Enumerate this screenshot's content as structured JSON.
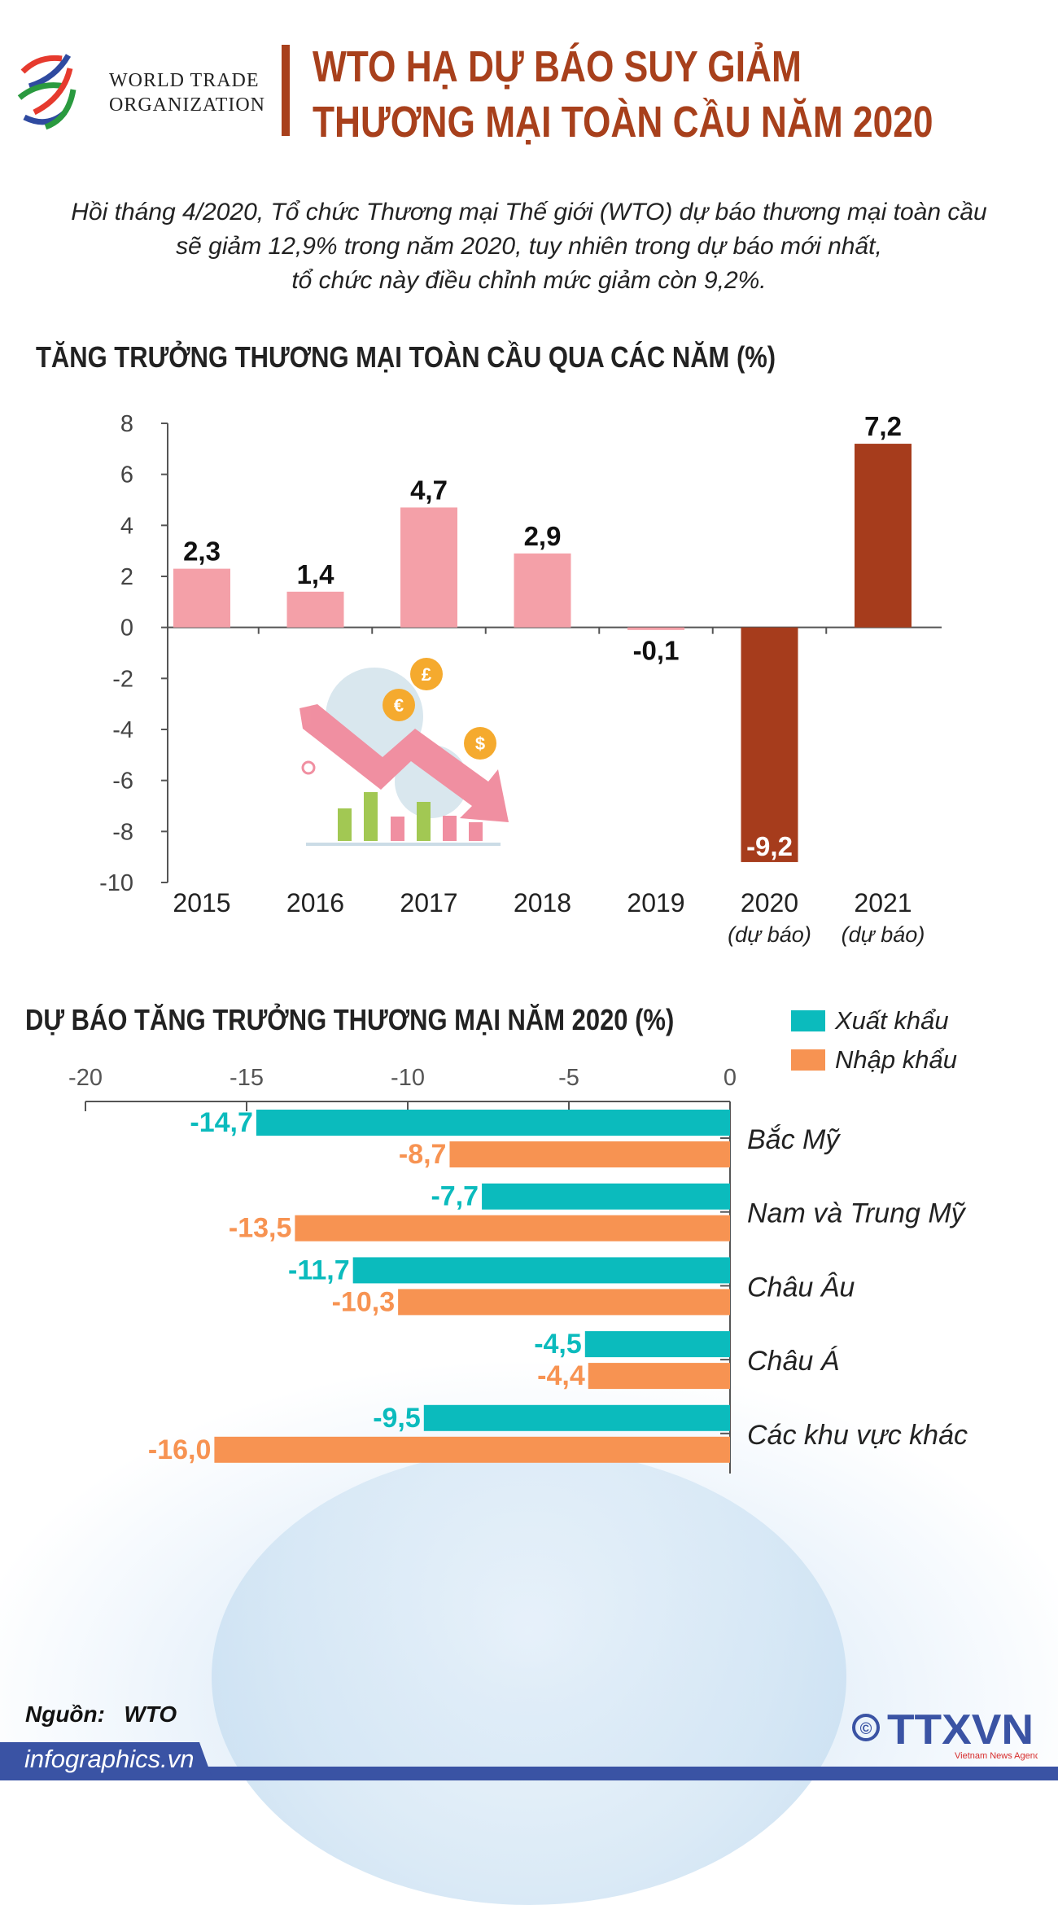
{
  "header": {
    "logo_text": [
      "WORLD TRADE",
      "ORGANIZATION"
    ],
    "title_lines": [
      "WTO HẠ DỰ BÁO SUY GIẢM",
      "THƯƠNG MẠI TOÀN CẦU NĂM 2020"
    ]
  },
  "intro": [
    "Hồi tháng 4/2020, Tổ chức Thương mại Thế giới (WTO) dự báo thương mại toàn cầu",
    "sẽ giảm 12,9% trong năm 2020, tuy nhiên trong dự báo mới nhất,",
    "tổ chức này điều chỉnh mức giảm còn 9,2%."
  ],
  "colors": {
    "accent": "#a8401c",
    "actual": "#f4a0a8",
    "forecast": "#a63c1c",
    "export": "#0bbbbd",
    "import": "#f79352",
    "brand_blue": "#3a53a4"
  },
  "chart_data": [
    {
      "type": "bar",
      "title": "TĂNG TRƯỞNG THƯƠNG MẠI TOÀN CẦU QUA CÁC NĂM (%)",
      "categories": [
        "2015",
        "2016",
        "2017",
        "2018",
        "2019",
        "2020",
        "2021"
      ],
      "category_notes": [
        "",
        "",
        "",
        "",
        "",
        "(dự báo)",
        "(dự báo)"
      ],
      "values": [
        2.3,
        1.4,
        4.7,
        2.9,
        -0.1,
        -9.2,
        7.2
      ],
      "value_labels": [
        "2,3",
        "1,4",
        "4,7",
        "2,9",
        "-0,1",
        "-9,2",
        "7,2"
      ],
      "forecast": [
        false,
        false,
        false,
        false,
        false,
        true,
        true
      ],
      "ylim": [
        -10,
        8
      ],
      "yticks": [
        8,
        6,
        4,
        2,
        0,
        -2,
        -4,
        -6,
        -8,
        -10
      ],
      "grid": false
    },
    {
      "type": "bar",
      "orientation": "horizontal",
      "title": "DỰ BÁO TĂNG TRƯỞNG THƯƠNG MẠI NĂM 2020 (%)",
      "categories": [
        "Bắc Mỹ",
        "Nam và Trung Mỹ",
        "Châu Âu",
        "Châu Á",
        "Các khu vực khác"
      ],
      "series": [
        {
          "name": "Xuất khẩu",
          "values": [
            -14.7,
            -7.7,
            -11.7,
            -4.5,
            -9.5
          ],
          "labels": [
            "-14,7",
            "-7,7",
            "-11,7",
            "-4,5",
            "-9,5"
          ]
        },
        {
          "name": "Nhập khẩu",
          "values": [
            -8.7,
            -13.5,
            -10.3,
            -4.4,
            -16.0
          ],
          "labels": [
            "-8,7",
            "-13,5",
            "-10,3",
            "-4,4",
            "-16,0"
          ]
        }
      ],
      "xlim": [
        -20,
        0
      ],
      "xticks": [
        -20,
        -15,
        -10,
        -5,
        0
      ],
      "legend": "top-right",
      "grid": false
    }
  ],
  "footer": {
    "source_label": "Nguồn:",
    "source_value": "WTO",
    "site": "infographics.vn",
    "agency_logo": "TTXVN",
    "agency_sub": "Vietnam News Agency",
    "copyright": "©"
  }
}
